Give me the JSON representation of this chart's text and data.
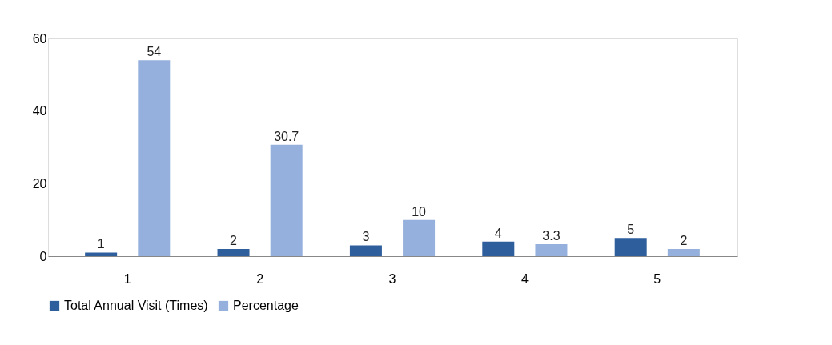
{
  "chart_data": {
    "type": "bar",
    "categories": [
      "1",
      "2",
      "3",
      "4",
      "5"
    ],
    "series": [
      {
        "name": "Total Annual Visit (Times)",
        "color": "#2e5e9c",
        "values": [
          1,
          2,
          3,
          4,
          5
        ]
      },
      {
        "name": "Percentage",
        "color": "#95b0dc",
        "values": [
          54,
          30.7,
          10,
          3.3,
          2
        ]
      }
    ],
    "ylim": [
      0,
      60
    ],
    "yticks": [
      0,
      20,
      40,
      60
    ],
    "data_labels": true,
    "legend": "bottom"
  }
}
